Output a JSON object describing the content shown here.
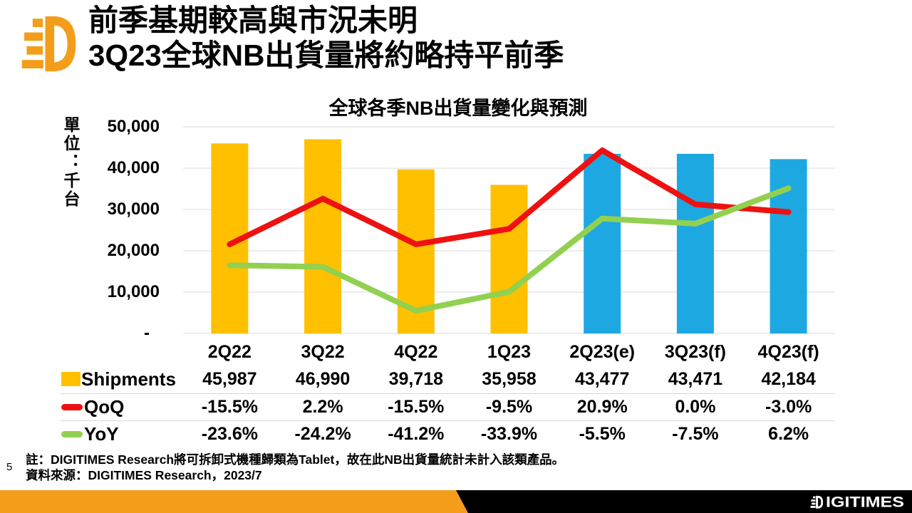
{
  "slide": {
    "title_line1": "前季基期較高與市況未明",
    "title_line2": "3Q23全球NB出貨量將約略持平前季",
    "page_number": "5",
    "note_line1": "註：DIGITIMES Research將可拆卸式機種歸類為Tablet，故在此NB出貨量統計未計入該類產品。",
    "note_line2": "資料來源：DIGITIMES Research，2023/7",
    "brand_wordmark": "DIGITIMES"
  },
  "chart_data": {
    "type": "bar",
    "subtype": "combo-bar-line",
    "title": "全球各季NB出貨量變化與預測",
    "unit_label": "單位：千台",
    "categories": [
      "2Q22",
      "3Q22",
      "4Q22",
      "1Q23",
      "2Q23(e)",
      "3Q23(f)",
      "4Q23(f)"
    ],
    "series": [
      {
        "name": "Shipments",
        "type": "bar",
        "axis": "primary",
        "values": [
          45987,
          46990,
          39718,
          35958,
          43477,
          43471,
          42184
        ]
      },
      {
        "name": "QoQ",
        "type": "line",
        "axis": "secondary",
        "values_pct": [
          -15.5,
          2.2,
          -15.5,
          -9.5,
          20.9,
          0.0,
          -3.0
        ]
      },
      {
        "name": "YoY",
        "type": "line",
        "axis": "secondary",
        "values_pct": [
          -23.6,
          -24.2,
          -41.2,
          -33.9,
          -5.5,
          -7.5,
          6.2
        ]
      }
    ],
    "primary_axis": {
      "min": 0,
      "max": 50000,
      "tick_labels": [
        "50,000",
        "40,000",
        "30,000",
        "20,000",
        "10,000",
        "-"
      ]
    },
    "secondary_axis_hidden": {
      "min": -50,
      "max": 30
    },
    "forecast_start_index": 4,
    "grid": true,
    "legend_position": "table-left",
    "colors": {
      "bar_actual": "#FFC000",
      "bar_forecast": "#1EA8E1",
      "qoq_line": "#EE1111",
      "yoy_line": "#92D050",
      "gridline": "#D9D9D9",
      "brand_orange": "#F49D1A",
      "footer_black": "#000000"
    }
  },
  "table": {
    "rows": [
      {
        "label": "Shipments",
        "marker": "bar-swatch",
        "values": [
          "45,987",
          "46,990",
          "39,718",
          "35,958",
          "43,477",
          "43,471",
          "42,184"
        ]
      },
      {
        "label": "QoQ",
        "marker": "line-red",
        "values": [
          "-15.5%",
          "2.2%",
          "-15.5%",
          "-9.5%",
          "20.9%",
          "0.0%",
          "-3.0%"
        ]
      },
      {
        "label": "YoY",
        "marker": "line-green",
        "values": [
          "-23.6%",
          "-24.2%",
          "-41.2%",
          "-33.9%",
          "-5.5%",
          "-7.5%",
          "6.2%"
        ]
      }
    ]
  }
}
